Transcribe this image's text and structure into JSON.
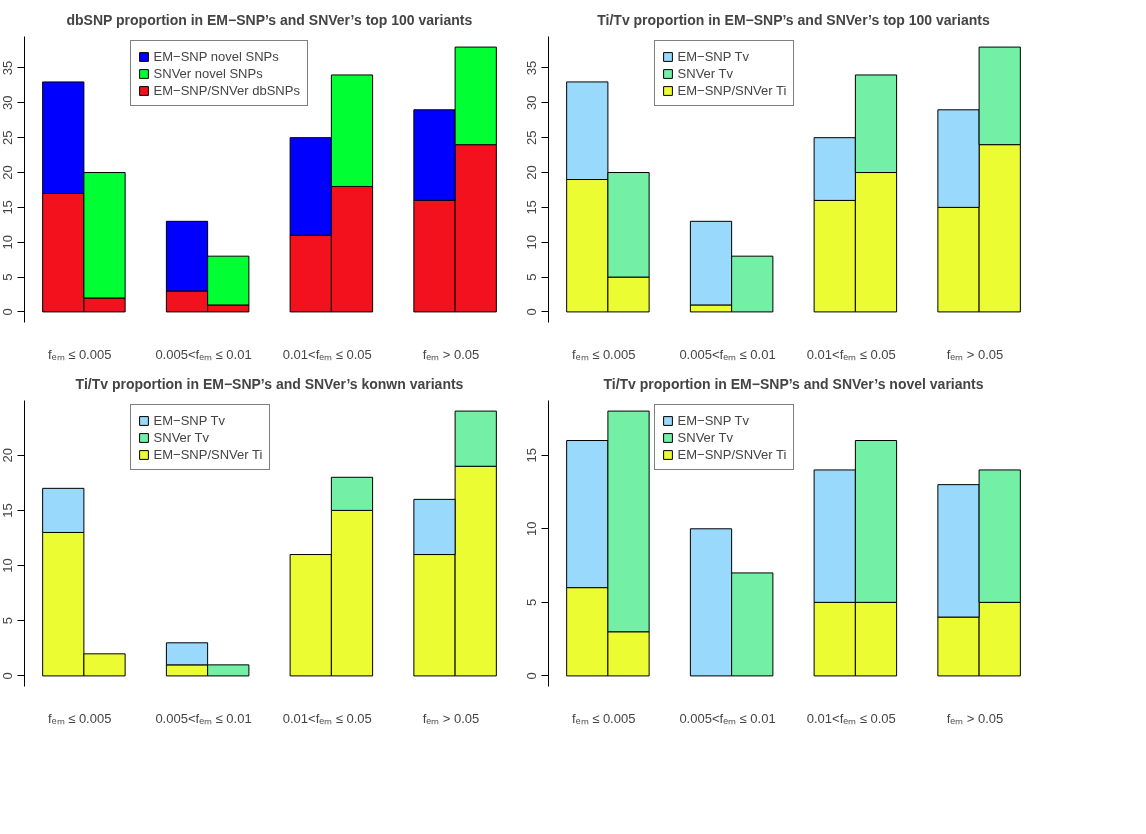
{
  "chart_data": [
    {
      "type": "bar",
      "stacked": true,
      "title": "dbSNP proportion in EM−SNP’s and SNVer’s top 100 variants",
      "legend": "top left",
      "categories": [
        "fₑₘ ≤ 0.005",
        null,
        null,
        "0.005<fₑₘ ≤ 0.01",
        null,
        null,
        "0.01<fₑₘ ≤ 0.05",
        null,
        null,
        "fₑₘ > 0.05",
        null
      ],
      "ylim": [
        -1.52,
        39.52
      ],
      "yticks": [
        0,
        5,
        10,
        15,
        20,
        25,
        30,
        35
      ],
      "series": [
        {
          "name": "EM−SNP/SNVer dbSNPs",
          "color": "#f2111c",
          "values": [
            17,
            2,
            null,
            3,
            1,
            null,
            11,
            18,
            null,
            16,
            24
          ]
        },
        {
          "name": "EM−SNP novel SNPs",
          "color": "#0000ff",
          "values": [
            16,
            null,
            null,
            10,
            null,
            null,
            14,
            null,
            null,
            13,
            null
          ]
        },
        {
          "name": "SNVer novel SNPs",
          "color": "#00ff33",
          "values": [
            null,
            18,
            null,
            null,
            7,
            null,
            null,
            16,
            null,
            null,
            14
          ]
        }
      ]
    },
    {
      "type": "bar",
      "stacked": true,
      "title": "Ti/Tv proportion in EM−SNP’s and SNVer’s top 100 variants",
      "legend": "top left",
      "categories": [
        "fₑₘ ≤ 0.005",
        null,
        null,
        "0.005<fₑₘ ≤ 0.01",
        null,
        null,
        "0.01<fₑₘ ≤ 0.05",
        null,
        null,
        "fₑₘ > 0.05",
        null
      ],
      "ylim": [
        -1.52,
        39.52
      ],
      "yticks": [
        0,
        5,
        10,
        15,
        20,
        25,
        30,
        35
      ],
      "series": [
        {
          "name": "EM−SNP/SNVer Ti",
          "color": "#ecfc33",
          "values": [
            19,
            5,
            null,
            1,
            0,
            null,
            16,
            20,
            null,
            15,
            24
          ]
        },
        {
          "name": "EM−SNP Tv",
          "color": "#99d9fb",
          "values": [
            14,
            null,
            null,
            12,
            null,
            null,
            9,
            null,
            null,
            14,
            null
          ]
        },
        {
          "name": "SNVer Tv",
          "color": "#73f0a6",
          "values": [
            null,
            15,
            null,
            null,
            8,
            null,
            null,
            14,
            null,
            null,
            14
          ]
        }
      ]
    },
    {
      "type": "bar",
      "stacked": true,
      "title": "Ti/Tv proportion in EM−SNP’s and SNVer’s konwn variants",
      "legend": "top left",
      "categories": [
        "fₑₘ ≤ 0.005",
        null,
        null,
        "0.005<fₑₘ ≤ 0.01",
        null,
        null,
        "0.01<fₑₘ ≤ 0.05",
        null,
        null,
        "fₑₘ > 0.05",
        null
      ],
      "ylim": [
        -0.96,
        24.96
      ],
      "yticks": [
        0,
        5,
        10,
        15,
        20
      ],
      "series": [
        {
          "name": "EM−SNP/SNVer Ti",
          "color": "#ecfc33",
          "values": [
            13,
            2,
            null,
            1,
            0,
            null,
            11,
            15,
            null,
            11,
            19
          ]
        },
        {
          "name": "EM−SNP Tv",
          "color": "#99d9fb",
          "values": [
            4,
            null,
            null,
            2,
            null,
            null,
            0,
            null,
            null,
            5,
            null
          ]
        },
        {
          "name": "SNVer Tv",
          "color": "#73f0a6",
          "values": [
            null,
            0,
            null,
            null,
            1,
            null,
            null,
            3,
            null,
            null,
            5
          ]
        }
      ]
    },
    {
      "type": "bar",
      "stacked": true,
      "title": "Ti/Tv proportion in EM−SNP’s and SNVer’s novel variants",
      "legend": "top left",
      "categories": [
        "fₑₘ ≤ 0.005",
        null,
        null,
        "0.005<fₑₘ ≤ 0.01",
        null,
        null,
        "0.01<fₑₘ ≤ 0.05",
        null,
        null,
        "fₑₘ > 0.05",
        null
      ],
      "ylim": [
        -0.72,
        18.72
      ],
      "yticks": [
        0,
        5,
        10,
        15
      ],
      "series": [
        {
          "name": "EM−SNP/SNVer Ti",
          "color": "#ecfc33",
          "values": [
            6,
            3,
            null,
            0,
            0,
            null,
            5,
            5,
            null,
            4,
            5
          ]
        },
        {
          "name": "EM−SNP Tv",
          "color": "#99d9fb",
          "values": [
            10,
            null,
            null,
            10,
            null,
            null,
            9,
            null,
            null,
            9,
            null
          ]
        },
        {
          "name": "SNVer Tv",
          "color": "#73f0a6",
          "values": [
            null,
            15,
            null,
            null,
            7,
            null,
            null,
            11,
            null,
            null,
            9
          ]
        }
      ]
    }
  ]
}
